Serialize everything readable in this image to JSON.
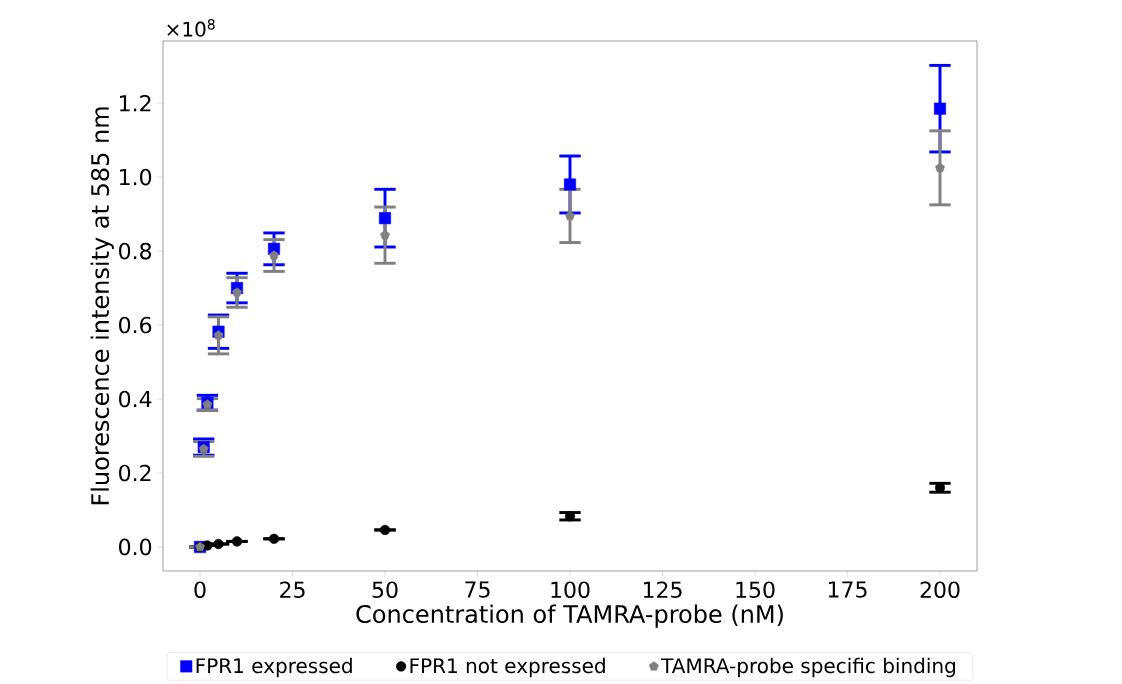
{
  "chart_data": {
    "type": "scatter",
    "xlabel": "Concentration of TAMRA-probe (nM)",
    "ylabel": "Fluorescence intensity at 585 nm",
    "annotations": [
      "×10$^{8}$"
    ],
    "x": [
      0,
      1,
      2,
      5,
      10,
      20,
      50,
      100,
      200
    ],
    "series": [
      {
        "name": "FPR1 expressed",
        "color": "#0000ff",
        "marker": "square",
        "values": [
          0.0,
          0.27,
          0.39,
          0.582,
          0.7,
          0.806,
          0.889,
          0.98,
          1.185
        ],
        "errors": [
          null,
          0.022,
          0.02,
          0.045,
          0.04,
          0.043,
          0.078,
          0.077,
          0.117
        ]
      },
      {
        "name": "FPR1 not expressed",
        "color": "#000000",
        "marker": "circle",
        "values": [
          0.0,
          null,
          0.004,
          0.008,
          0.015,
          0.022,
          0.046,
          0.083,
          0.16
        ],
        "errors": [
          null,
          null,
          null,
          null,
          null,
          null,
          null,
          0.01,
          0.012
        ]
      },
      {
        "name": "TAMRA-probe specific binding",
        "color": "#808080",
        "values": [
          0.0,
          0.265,
          0.385,
          0.572,
          0.688,
          0.788,
          0.843,
          0.895,
          1.025
        ],
        "errors": [
          null,
          0.02,
          0.016,
          0.05,
          0.04,
          0.043,
          0.076,
          0.072,
          0.1
        ]
      }
    ],
    "xlim": [
      -10,
      210
    ],
    "ylim": [
      -0.065,
      1.368
    ],
    "xticks": [
      0,
      25,
      50,
      75,
      100,
      125,
      150,
      175,
      200
    ],
    "yticks": [
      {
        "value": 0,
        "label": "0.0"
      },
      {
        "value": 0.2,
        "label": "0.2"
      },
      {
        "value": 0.4,
        "label": "0.4"
      },
      {
        "value": 0.6,
        "label": "0.6"
      },
      {
        "value": 0.8,
        "label": "0.8"
      },
      {
        "value": 1.0,
        "label": "1.0"
      },
      {
        "value": 1.2,
        "label": "1.2"
      }
    ],
    "legend": "bottom",
    "grid": false
  }
}
